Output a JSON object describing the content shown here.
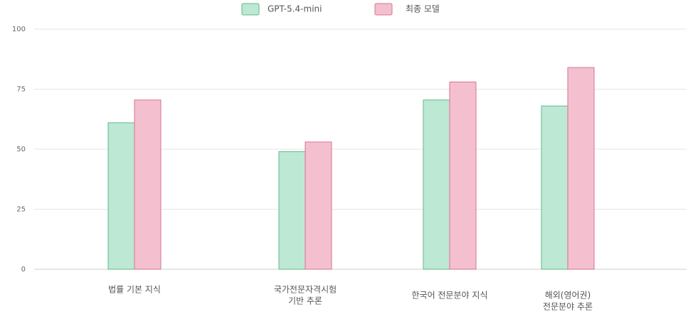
{
  "chart_data": {
    "type": "bar",
    "categories": [
      [
        "법률 기본 지식"
      ],
      [
        "국가전문자격시험",
        "기반 추론"
      ],
      [
        "한국어 전문분야 지식"
      ],
      [
        "해외(영어권)",
        "전문분야 추론"
      ]
    ],
    "series": [
      {
        "name": "GPT-5.4-mini",
        "color": "#bde8d4",
        "values": [
          61,
          49,
          70.5,
          68
        ]
      },
      {
        "name": "최종 모델",
        "color": "#f4c0d0",
        "values": [
          70.5,
          53,
          78,
          84
        ]
      }
    ],
    "ylim": [
      0,
      100
    ],
    "yticks": [
      0,
      25,
      50,
      75,
      100
    ],
    "grid": true,
    "legend": "top"
  }
}
